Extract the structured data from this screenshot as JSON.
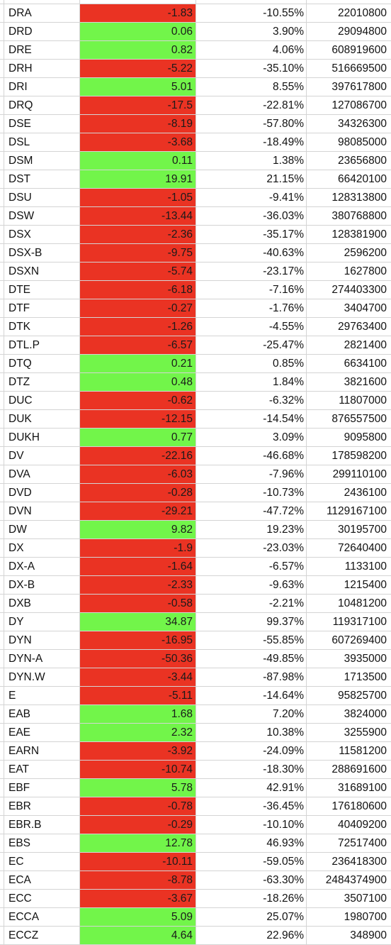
{
  "sheet": {
    "colors": {
      "positive_fill": "#72f54a",
      "negative_fill": "#ea3323",
      "gridline": "#d4d4d4"
    },
    "rows": [
      [
        "DRA",
        "-1.83",
        "-10.55%",
        "22010800"
      ],
      [
        "DRD",
        "0.06",
        "3.90%",
        "29094800"
      ],
      [
        "DRE",
        "0.82",
        "4.06%",
        "608919600"
      ],
      [
        "DRH",
        "-5.22",
        "-35.10%",
        "516669500"
      ],
      [
        "DRI",
        "5.01",
        "8.55%",
        "397617800"
      ],
      [
        "DRQ",
        "-17.5",
        "-22.81%",
        "127086700"
      ],
      [
        "DSE",
        "-8.19",
        "-57.80%",
        "34326300"
      ],
      [
        "DSL",
        "-3.68",
        "-18.49%",
        "98085000"
      ],
      [
        "DSM",
        "0.11",
        "1.38%",
        "23656800"
      ],
      [
        "DST",
        "19.91",
        "21.15%",
        "66420100"
      ],
      [
        "DSU",
        "-1.05",
        "-9.41%",
        "128313800"
      ],
      [
        "DSW",
        "-13.44",
        "-36.03%",
        "380768800"
      ],
      [
        "DSX",
        "-2.36",
        "-35.17%",
        "128381900"
      ],
      [
        "DSX-B",
        "-9.75",
        "-40.63%",
        "2596200"
      ],
      [
        "DSXN",
        "-5.74",
        "-23.17%",
        "1627800"
      ],
      [
        "DTE",
        "-6.18",
        "-7.16%",
        "274403300"
      ],
      [
        "DTF",
        "-0.27",
        "-1.76%",
        "3404700"
      ],
      [
        "DTK",
        "-1.26",
        "-4.55%",
        "29763400"
      ],
      [
        "DTL.P",
        "-6.57",
        "-25.47%",
        "2821400"
      ],
      [
        "DTQ",
        "0.21",
        "0.85%",
        "6634100"
      ],
      [
        "DTZ",
        "0.48",
        "1.84%",
        "3821600"
      ],
      [
        "DUC",
        "-0.62",
        "-6.32%",
        "11807000"
      ],
      [
        "DUK",
        "-12.15",
        "-14.54%",
        "876557500"
      ],
      [
        "DUKH",
        "0.77",
        "3.09%",
        "9095800"
      ],
      [
        "DV",
        "-22.16",
        "-46.68%",
        "178598200"
      ],
      [
        "DVA",
        "-6.03",
        "-7.96%",
        "299110100"
      ],
      [
        "DVD",
        "-0.28",
        "-10.73%",
        "2436100"
      ],
      [
        "DVN",
        "-29.21",
        "-47.72%",
        "1129167100"
      ],
      [
        "DW",
        "9.82",
        "19.23%",
        "30195700"
      ],
      [
        "DX",
        "-1.9",
        "-23.03%",
        "72640400"
      ],
      [
        "DX-A",
        "-1.64",
        "-6.57%",
        "1133100"
      ],
      [
        "DX-B",
        "-2.33",
        "-9.63%",
        "1215400"
      ],
      [
        "DXB",
        "-0.58",
        "-2.21%",
        "10481200"
      ],
      [
        "DY",
        "34.87",
        "99.37%",
        "119317100"
      ],
      [
        "DYN",
        "-16.95",
        "-55.85%",
        "607269400"
      ],
      [
        "DYN-A",
        "-50.36",
        "-49.85%",
        "3935000"
      ],
      [
        "DYN.W",
        "-3.44",
        "-87.98%",
        "1713500"
      ],
      [
        "E",
        "-5.11",
        "-14.64%",
        "95825700"
      ],
      [
        "EAB",
        "1.68",
        "7.20%",
        "3824000"
      ],
      [
        "EAE",
        "2.32",
        "10.38%",
        "3255900"
      ],
      [
        "EARN",
        "-3.92",
        "-24.09%",
        "11581200"
      ],
      [
        "EAT",
        "-10.74",
        "-18.30%",
        "288691600"
      ],
      [
        "EBF",
        "5.78",
        "42.91%",
        "31689100"
      ],
      [
        "EBR",
        "-0.78",
        "-36.45%",
        "176180600"
      ],
      [
        "EBR.B",
        "-0.29",
        "-10.10%",
        "40409200"
      ],
      [
        "EBS",
        "12.78",
        "46.93%",
        "72517400"
      ],
      [
        "EC",
        "-10.11",
        "-59.05%",
        "236418300"
      ],
      [
        "ECA",
        "-8.78",
        "-63.30%",
        "2484374900"
      ],
      [
        "ECC",
        "-3.67",
        "-18.26%",
        "3507100"
      ],
      [
        "ECCA",
        "5.09",
        "25.07%",
        "1980700"
      ],
      [
        "ECCZ",
        "4.64",
        "22.96%",
        "348900"
      ]
    ]
  }
}
